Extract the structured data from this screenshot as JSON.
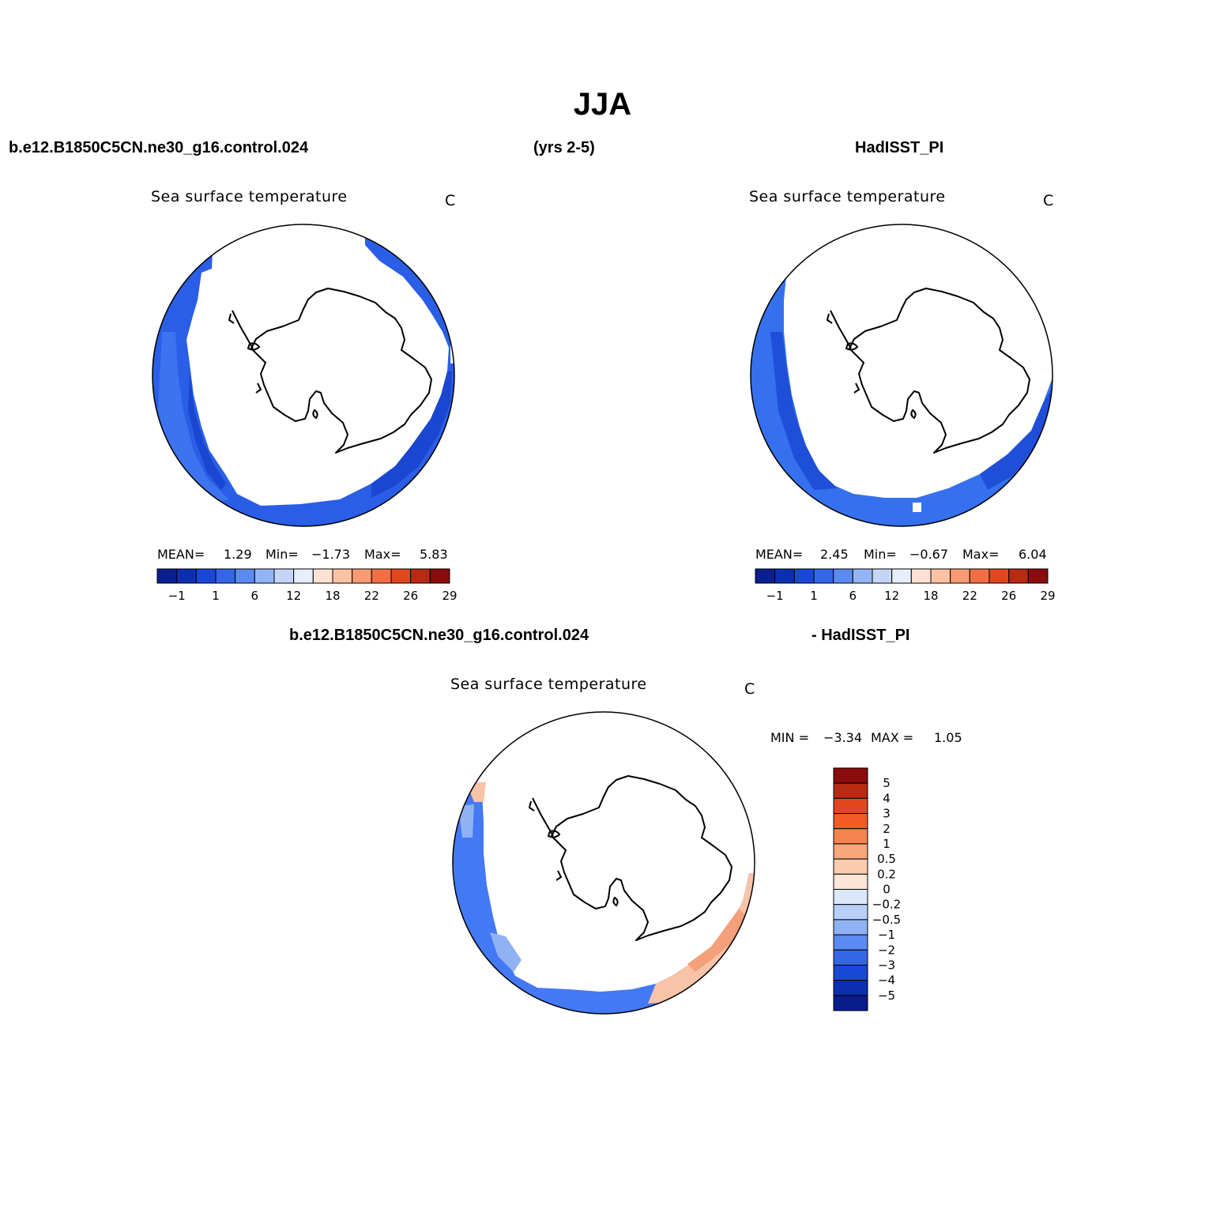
{
  "figure": {
    "title": "JJA",
    "case_name": "b.e12.B1850C5CN.ne30_g16.control.024",
    "years": "(yrs 2-5)",
    "obs_name": "HadISST_PI",
    "diff_left": "b.e12.B1850C5CN.ne30_g16.control.024",
    "diff_right": "- HadISST_PI"
  },
  "panels": [
    {
      "title": "Sea surface temperature",
      "units": "C",
      "stats": {
        "mean_label": "MEAN=",
        "mean": "1.29",
        "min_label": "Min=",
        "min": "−1.73",
        "max_label": "Max=",
        "max": "5.83"
      }
    },
    {
      "title": "Sea surface temperature",
      "units": "C",
      "stats": {
        "mean_label": "MEAN=",
        "mean": "2.45",
        "min_label": "Min=",
        "min": "−0.67",
        "max_label": "Max=",
        "max": "6.04"
      }
    },
    {
      "title": "Sea surface temperature",
      "units": "C",
      "stats": {
        "min_label": "MIN =",
        "min": "−3.34",
        "max_label": "MAX =",
        "max": "1.05"
      }
    }
  ],
  "colorbars": {
    "absolute": {
      "colors": [
        "#0a1f8f",
        "#0b2fb3",
        "#1947d6",
        "#3566e8",
        "#5b8af0",
        "#93b4f5",
        "#c4d6f8",
        "#e6eefb",
        "#fde2d3",
        "#fbc1a3",
        "#f89a72",
        "#f36e42",
        "#e0471f",
        "#b82a12",
        "#8b0c0c"
      ],
      "tick_labels": [
        "−1",
        "1",
        "6",
        "12",
        "18",
        "22",
        "26",
        "29"
      ]
    },
    "difference": {
      "colors": [
        "#8b0c0c",
        "#b82a12",
        "#e0471f",
        "#f35a26",
        "#f5834f",
        "#f8a67b",
        "#fbcbb0",
        "#fde6d8",
        "#dbe8fb",
        "#b8d0f8",
        "#8fb2f4",
        "#5b8af0",
        "#3566e8",
        "#1947d6",
        "#0b2fb3",
        "#081c8c"
      ],
      "tick_labels": [
        "5",
        "4",
        "3",
        "2",
        "1",
        "0.5",
        "0.2",
        "0",
        "−0.2",
        "−0.5",
        "−1",
        "−2",
        "−3",
        "−4",
        "−5"
      ]
    }
  },
  "map_colors": {
    "model_sst_main": "#2a5ee6",
    "model_sst_light": "#3b73f0",
    "model_sst_dark": "#1a46d2",
    "obs_sst_main": "#3570ee",
    "obs_sst_dark": "#1f4fd8",
    "diff_neg": "#4479f5",
    "diff_neg_light": "#8fb2f4",
    "diff_pos": "#f9c3a8",
    "diff_pos_strong": "#f4a07a"
  }
}
